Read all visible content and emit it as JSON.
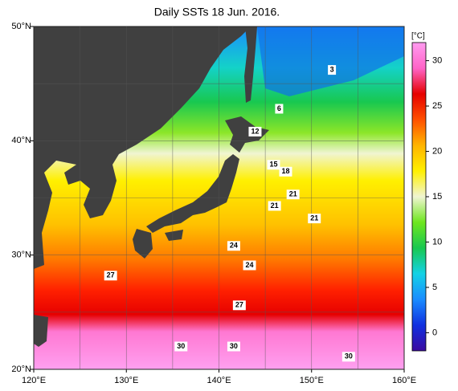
{
  "chart_data": {
    "type": "map",
    "title": "Daily SSTs 18 Jun. 2016.",
    "colorbar_unit": "[°C]",
    "xlim": [
      120,
      160
    ],
    "ylim": [
      20,
      50
    ],
    "xticks": [
      {
        "value": 120,
        "label": "120°E"
      },
      {
        "value": 130,
        "label": "130°E"
      },
      {
        "value": 140,
        "label": "140°E"
      },
      {
        "value": 150,
        "label": "150°E"
      },
      {
        "value": 160,
        "label": "160°E"
      }
    ],
    "yticks": [
      {
        "value": 20,
        "label": "20°N"
      },
      {
        "value": 30,
        "label": "30°N"
      },
      {
        "value": 40,
        "label": "40°N"
      },
      {
        "value": 50,
        "label": "50°N"
      }
    ],
    "xminor_ticks": [
      125,
      135,
      145,
      155
    ],
    "yminor_ticks": [
      25,
      35,
      45
    ],
    "grid": true,
    "colorbar_lim": [
      -2,
      32
    ],
    "colorbar_ticks": [
      0,
      5,
      10,
      15,
      20,
      25,
      30
    ],
    "colorbar_colors": [
      "#3a0aa0",
      "#1030e0",
      "#1a8cff",
      "#14d2e6",
      "#18c850",
      "#6ee61e",
      "#f0f5d2",
      "#fff000",
      "#ffb400",
      "#ff5000",
      "#e60000",
      "#ff64c8",
      "#ff9bf0"
    ],
    "contour_labels": [
      {
        "value": 3,
        "lon": 152.2,
        "lat": 46.2
      },
      {
        "value": 6,
        "lon": 146.5,
        "lat": 42.8
      },
      {
        "value": 12,
        "lon": 143.9,
        "lat": 40.8
      },
      {
        "value": 15,
        "lon": 145.9,
        "lat": 37.9
      },
      {
        "value": 18,
        "lon": 147.2,
        "lat": 37.3
      },
      {
        "value": 21,
        "lon": 148.0,
        "lat": 35.3
      },
      {
        "value": 21,
        "lon": 146.0,
        "lat": 34.3
      },
      {
        "value": 21,
        "lon": 150.3,
        "lat": 33.2
      },
      {
        "value": 24,
        "lon": 141.6,
        "lat": 30.8
      },
      {
        "value": 24,
        "lon": 143.3,
        "lat": 29.1
      },
      {
        "value": 27,
        "lon": 128.3,
        "lat": 28.2
      },
      {
        "value": 27,
        "lon": 142.2,
        "lat": 25.6
      },
      {
        "value": 30,
        "lon": 135.9,
        "lat": 22.0
      },
      {
        "value": 30,
        "lon": 141.6,
        "lat": 22.0
      },
      {
        "value": 30,
        "lon": 154.0,
        "lat": 21.1
      }
    ]
  }
}
